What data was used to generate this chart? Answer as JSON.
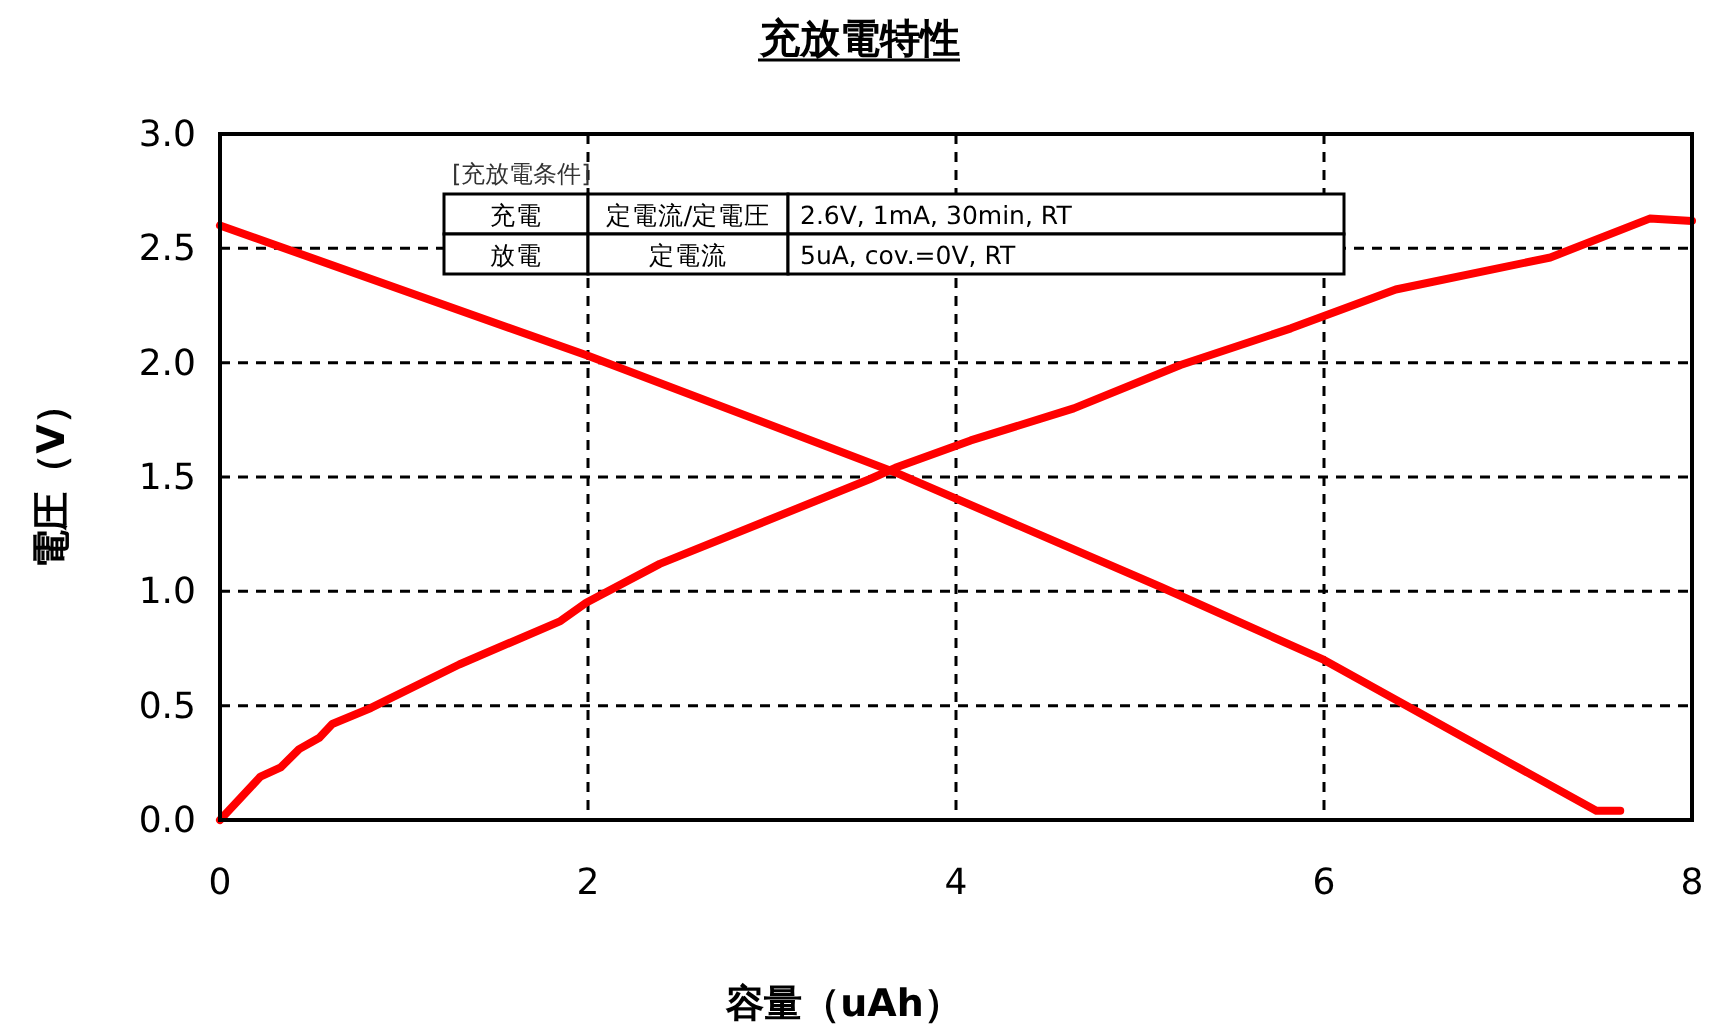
{
  "chart_data": {
    "type": "line",
    "title": "充放電特性",
    "xlabel": "容量（uAh）",
    "ylabel": "電圧（V）",
    "xlim": [
      0,
      8
    ],
    "ylim": [
      0,
      3
    ],
    "xticks": [
      0,
      2,
      4,
      6,
      8
    ],
    "yticks": [
      {
        "value": 0,
        "label": "0.0"
      },
      {
        "value": 0.5,
        "label": "0.5"
      },
      {
        "value": 1,
        "label": "1.0"
      },
      {
        "value": 1.5,
        "label": "1.5"
      },
      {
        "value": 2,
        "label": "2.0"
      },
      {
        "value": 2.5,
        "label": "2.5"
      },
      {
        "value": 3,
        "label": "3.0"
      }
    ],
    "grid": true,
    "annotations": [
      "[充放電条件]",
      "充電",
      "定電流/定電圧",
      "2.6V, 1mA, 30min, RT",
      "放電",
      "定電流",
      "5uA, cov.=0V, RT"
    ],
    "series": [
      {
        "color": "#ff0000",
        "x": [
          0,
          0.22,
          0.33,
          0.43,
          0.54,
          0.61,
          0.82,
          1.3,
          1.85,
          1.99,
          2.39,
          3.53,
          3.67,
          4.08,
          4.64,
          5.22,
          5.82,
          6.39,
          7.23,
          7.77,
          8.0
        ],
        "values": [
          0,
          0.19,
          0.23,
          0.31,
          0.36,
          0.42,
          0.49,
          0.68,
          0.87,
          0.95,
          1.12,
          1.49,
          1.54,
          1.66,
          1.8,
          1.99,
          2.15,
          2.32,
          2.46,
          2.63,
          2.62
        ]
      },
      {
        "color": "#ff0000",
        "x": [
          0,
          2.0,
          3.67,
          5.11,
          6.0,
          7.48,
          7.61
        ],
        "values": [
          2.6,
          2.03,
          1.52,
          1.02,
          0.7,
          0.04,
          0.04
        ]
      }
    ]
  }
}
